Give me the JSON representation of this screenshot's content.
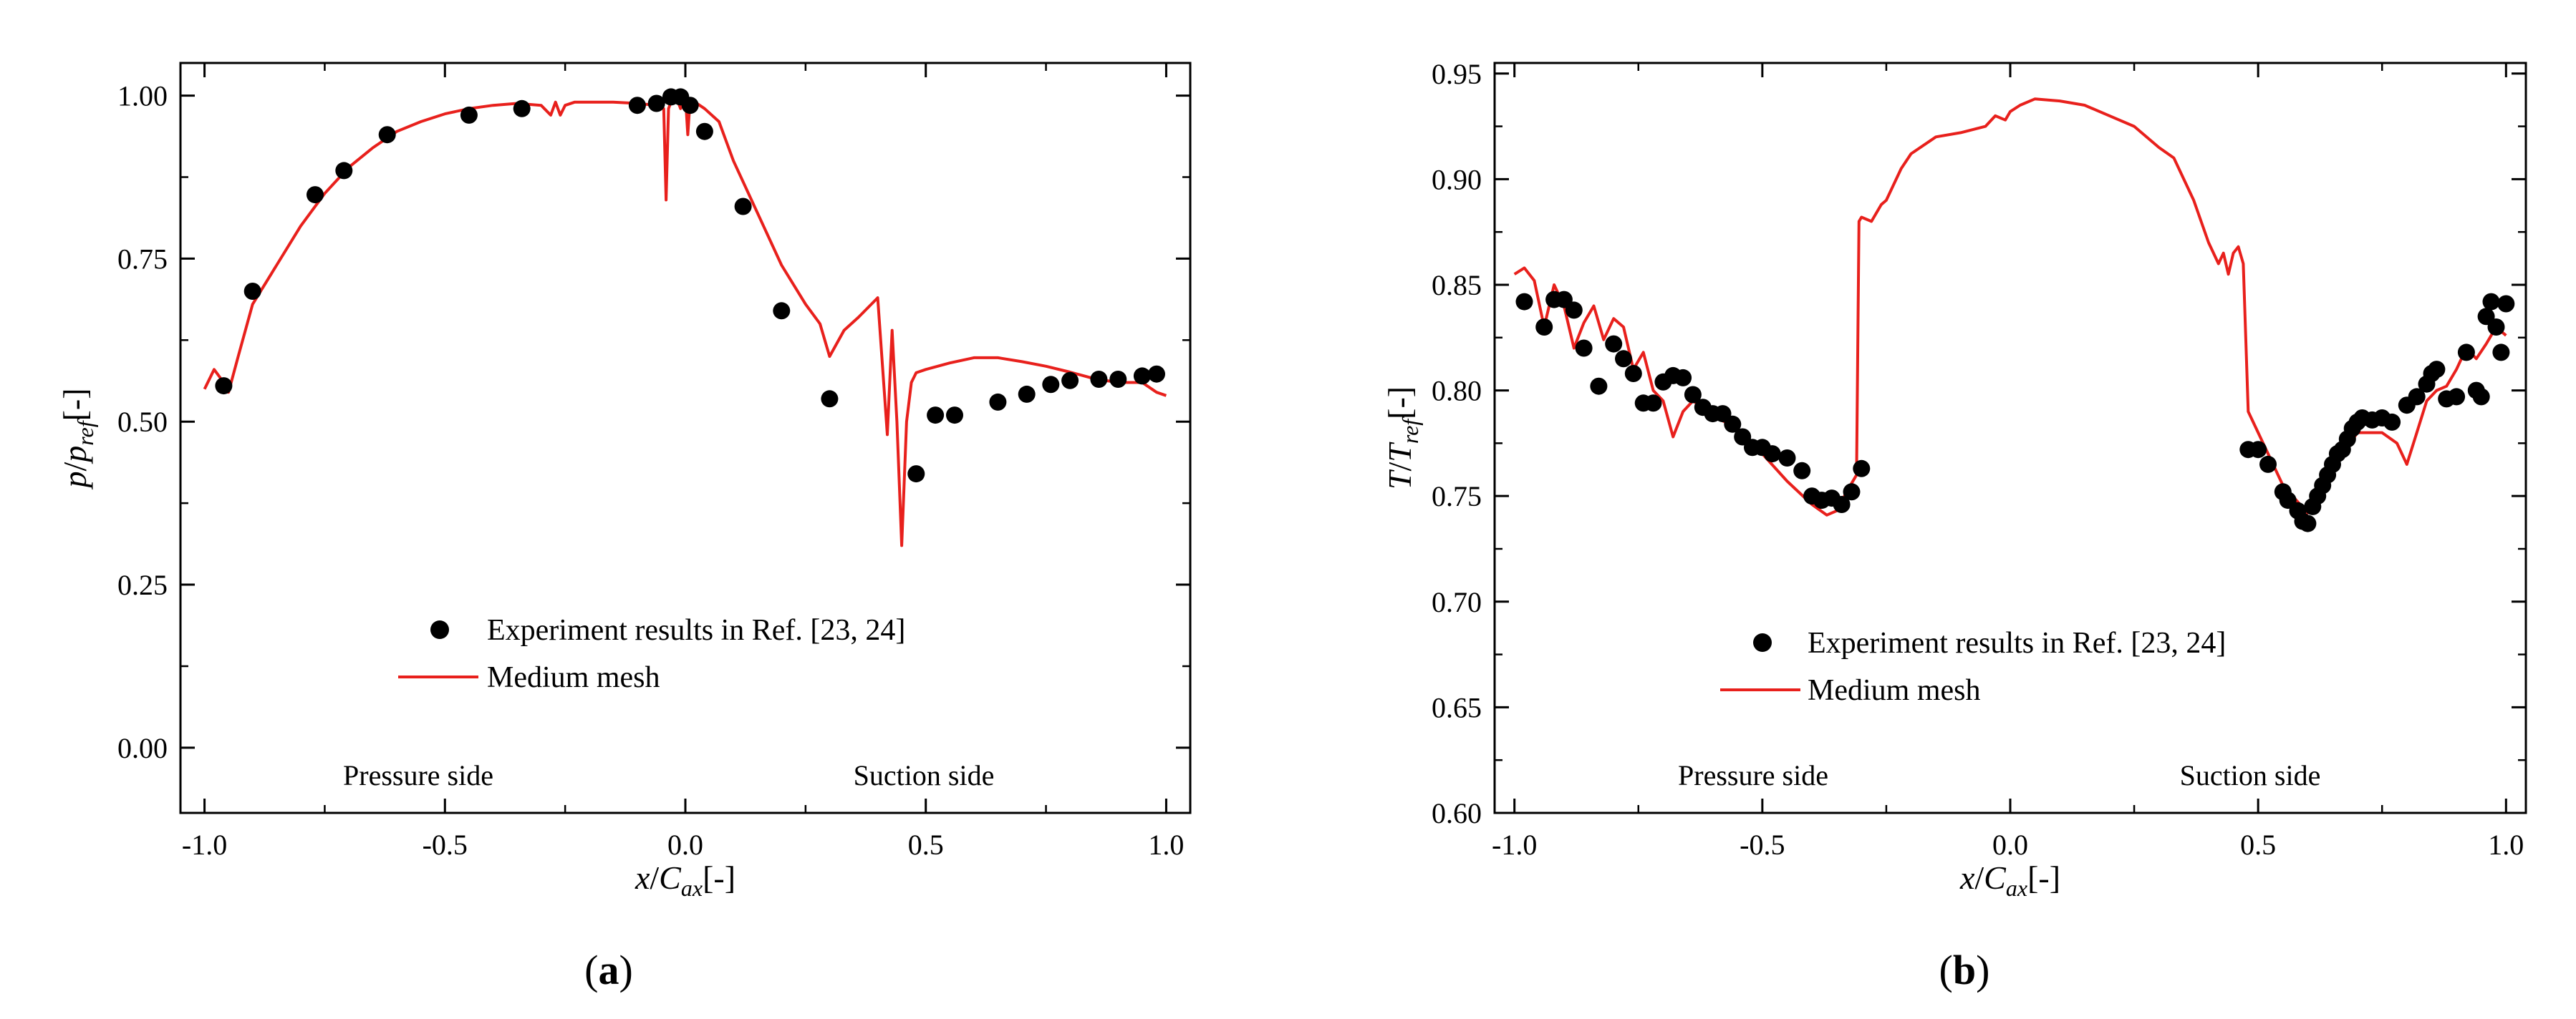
{
  "panels": [
    {
      "letter": "a",
      "open": "(",
      "close": ")"
    },
    {
      "letter": "b",
      "open": "(",
      "close": ")"
    }
  ],
  "chart_data": [
    {
      "type": "scatter+line",
      "panel": "(a)",
      "xlabel": {
        "main": "x",
        "sep": "/",
        "sym": "C",
        "sub": "ax",
        "unit": "[-]"
      },
      "ylabel": {
        "main": "p",
        "sep": "/",
        "sym": "p",
        "sub": "ref",
        "unit": "[-]"
      },
      "xlim": [
        -1.05,
        1.05
      ],
      "ylim": [
        -0.1,
        1.05
      ],
      "xticks": [
        -1.0,
        -0.5,
        0.0,
        0.5,
        1.0
      ],
      "xtick_labels": [
        "-1.0",
        "-0.5",
        "0.0",
        "0.5",
        "1.0"
      ],
      "yticks": [
        0.0,
        0.25,
        0.5,
        0.75,
        1.0
      ],
      "ytick_labels": [
        "0.00",
        "0.25",
        "0.50",
        "0.75",
        "1.00"
      ],
      "annotations": [
        "Pressure side",
        "Suction side"
      ],
      "legend": [
        "Experiment results in Ref. [23, 24]",
        "Medium mesh"
      ],
      "series": [
        {
          "name": "Experiment results in Ref. [23, 24]",
          "kind": "scatter",
          "color": "#000000",
          "x": [
            -0.96,
            -0.9,
            -0.77,
            -0.71,
            -0.62,
            -0.45,
            -0.34,
            -0.1,
            -0.06,
            -0.03,
            -0.01,
            0.01,
            0.04,
            0.12,
            0.2,
            0.3,
            0.48,
            0.52,
            0.56,
            0.65,
            0.71,
            0.76,
            0.8,
            0.86,
            0.9,
            0.95,
            0.98
          ],
          "y": [
            0.555,
            0.7,
            0.848,
            0.885,
            0.94,
            0.97,
            0.98,
            0.985,
            0.988,
            0.998,
            0.998,
            0.985,
            0.945,
            0.83,
            0.67,
            0.535,
            0.42,
            0.51,
            0.51,
            0.53,
            0.542,
            0.557,
            0.563,
            0.565,
            0.565,
            0.57,
            0.573
          ]
        },
        {
          "name": "Medium mesh",
          "kind": "line",
          "color": "#e8201c",
          "x": [
            -1.0,
            -0.98,
            -0.96,
            -0.95,
            -0.93,
            -0.9,
            -0.85,
            -0.8,
            -0.75,
            -0.7,
            -0.65,
            -0.6,
            -0.55,
            -0.5,
            -0.45,
            -0.4,
            -0.35,
            -0.3,
            -0.28,
            -0.27,
            -0.26,
            -0.25,
            -0.23,
            -0.2,
            -0.15,
            -0.1,
            -0.06,
            -0.045,
            -0.04,
            -0.035,
            -0.03,
            -0.02,
            -0.01,
            0.0,
            0.005,
            0.01,
            0.02,
            0.04,
            0.07,
            0.1,
            0.15,
            0.2,
            0.25,
            0.28,
            0.3,
            0.33,
            0.36,
            0.4,
            0.42,
            0.43,
            0.44,
            0.45,
            0.46,
            0.47,
            0.48,
            0.5,
            0.55,
            0.6,
            0.65,
            0.7,
            0.75,
            0.8,
            0.85,
            0.9,
            0.95,
            0.98,
            1.0
          ],
          "y": [
            0.55,
            0.58,
            0.56,
            0.545,
            0.6,
            0.68,
            0.74,
            0.8,
            0.85,
            0.89,
            0.92,
            0.945,
            0.96,
            0.972,
            0.98,
            0.985,
            0.988,
            0.985,
            0.97,
            0.99,
            0.97,
            0.985,
            0.99,
            0.99,
            0.99,
            0.988,
            0.985,
            0.98,
            0.84,
            0.98,
            0.99,
            1.0,
            0.98,
            1.0,
            0.94,
            0.995,
            0.99,
            0.98,
            0.96,
            0.9,
            0.82,
            0.74,
            0.68,
            0.65,
            0.6,
            0.64,
            0.66,
            0.69,
            0.48,
            0.64,
            0.5,
            0.31,
            0.5,
            0.56,
            0.575,
            0.58,
            0.59,
            0.598,
            0.598,
            0.592,
            0.585,
            0.576,
            0.566,
            0.56,
            0.56,
            0.545,
            0.54
          ]
        }
      ]
    },
    {
      "type": "scatter+line",
      "panel": "(b)",
      "xlabel": {
        "main": "x",
        "sep": "/",
        "sym": "C",
        "sub": "ax",
        "unit": "[-]"
      },
      "ylabel": {
        "main": "T",
        "sep": "/",
        "sym": "T",
        "sub": "ref",
        "unit": "[-]"
      },
      "xlim": [
        -1.04,
        1.04
      ],
      "ylim": [
        0.6,
        0.955
      ],
      "xticks": [
        -1.0,
        -0.5,
        0.0,
        0.5,
        1.0
      ],
      "xtick_labels": [
        "-1.0",
        "-0.5",
        "0.0",
        "0.5",
        "1.0"
      ],
      "yticks": [
        0.6,
        0.65,
        0.7,
        0.75,
        0.8,
        0.85,
        0.9,
        0.95
      ],
      "ytick_labels": [
        "0.60",
        "0.65",
        "0.70",
        "0.75",
        "0.80",
        "0.85",
        "0.90",
        "0.95"
      ],
      "annotations": [
        "Pressure side",
        "Suction side"
      ],
      "legend": [
        "Experiment results in Ref. [23, 24]",
        "Medium mesh"
      ],
      "series": [
        {
          "name": "Experiment results in Ref. [23, 24]",
          "kind": "scatter",
          "color": "#000000",
          "x": [
            -0.98,
            -0.94,
            -0.92,
            -0.9,
            -0.88,
            -0.86,
            -0.83,
            -0.8,
            -0.78,
            -0.76,
            -0.74,
            -0.72,
            -0.7,
            -0.68,
            -0.66,
            -0.64,
            -0.62,
            -0.6,
            -0.58,
            -0.56,
            -0.54,
            -0.52,
            -0.5,
            -0.48,
            -0.45,
            -0.42,
            -0.4,
            -0.38,
            -0.36,
            -0.34,
            -0.32,
            -0.3,
            0.48,
            0.5,
            0.52,
            0.55,
            0.56,
            0.58,
            0.59,
            0.6,
            0.61,
            0.62,
            0.63,
            0.64,
            0.65,
            0.66,
            0.67,
            0.68,
            0.69,
            0.7,
            0.71,
            0.73,
            0.75,
            0.77,
            0.8,
            0.82,
            0.84,
            0.85,
            0.86,
            0.88,
            0.9,
            0.92,
            0.94,
            0.95,
            0.96,
            0.97,
            0.98,
            0.99,
            1.0
          ],
          "y": [
            0.842,
            0.83,
            0.843,
            0.843,
            0.838,
            0.82,
            0.802,
            0.822,
            0.815,
            0.808,
            0.794,
            0.794,
            0.804,
            0.807,
            0.806,
            0.798,
            0.792,
            0.789,
            0.789,
            0.784,
            0.778,
            0.773,
            0.773,
            0.77,
            0.768,
            0.762,
            0.75,
            0.748,
            0.749,
            0.746,
            0.752,
            0.763,
            0.772,
            0.772,
            0.765,
            0.752,
            0.748,
            0.743,
            0.738,
            0.737,
            0.745,
            0.75,
            0.755,
            0.76,
            0.765,
            0.77,
            0.772,
            0.777,
            0.782,
            0.785,
            0.787,
            0.786,
            0.787,
            0.785,
            0.793,
            0.797,
            0.803,
            0.808,
            0.81,
            0.796,
            0.797,
            0.818,
            0.8,
            0.797,
            0.835,
            0.842,
            0.83,
            0.818,
            0.841
          ]
        },
        {
          "name": "Medium mesh",
          "kind": "line",
          "color": "#e8201c",
          "x": [
            -1.0,
            -0.98,
            -0.96,
            -0.94,
            -0.92,
            -0.9,
            -0.88,
            -0.86,
            -0.84,
            -0.82,
            -0.8,
            -0.78,
            -0.76,
            -0.74,
            -0.72,
            -0.7,
            -0.68,
            -0.66,
            -0.64,
            -0.62,
            -0.6,
            -0.55,
            -0.5,
            -0.45,
            -0.4,
            -0.37,
            -0.35,
            -0.33,
            -0.31,
            -0.305,
            -0.3,
            -0.28,
            -0.26,
            -0.25,
            -0.22,
            -0.2,
            -0.15,
            -0.1,
            -0.05,
            -0.03,
            -0.01,
            0.0,
            0.02,
            0.05,
            0.1,
            0.15,
            0.2,
            0.25,
            0.3,
            0.33,
            0.37,
            0.4,
            0.42,
            0.43,
            0.44,
            0.45,
            0.46,
            0.47,
            0.48,
            0.5,
            0.55,
            0.6,
            0.65,
            0.7,
            0.75,
            0.78,
            0.8,
            0.82,
            0.84,
            0.86,
            0.88,
            0.9,
            0.92,
            0.94,
            0.96,
            0.98,
            1.0
          ],
          "y": [
            0.855,
            0.858,
            0.852,
            0.83,
            0.85,
            0.84,
            0.82,
            0.832,
            0.84,
            0.824,
            0.834,
            0.83,
            0.81,
            0.818,
            0.8,
            0.795,
            0.778,
            0.79,
            0.795,
            0.792,
            0.788,
            0.782,
            0.77,
            0.757,
            0.746,
            0.741,
            0.743,
            0.752,
            0.76,
            0.88,
            0.882,
            0.88,
            0.888,
            0.89,
            0.905,
            0.912,
            0.92,
            0.922,
            0.925,
            0.93,
            0.928,
            0.932,
            0.935,
            0.938,
            0.937,
            0.935,
            0.93,
            0.925,
            0.915,
            0.91,
            0.89,
            0.87,
            0.86,
            0.865,
            0.855,
            0.865,
            0.868,
            0.86,
            0.79,
            0.78,
            0.755,
            0.742,
            0.762,
            0.78,
            0.78,
            0.775,
            0.765,
            0.78,
            0.795,
            0.8,
            0.802,
            0.81,
            0.82,
            0.815,
            0.822,
            0.83,
            0.826
          ]
        }
      ]
    }
  ]
}
